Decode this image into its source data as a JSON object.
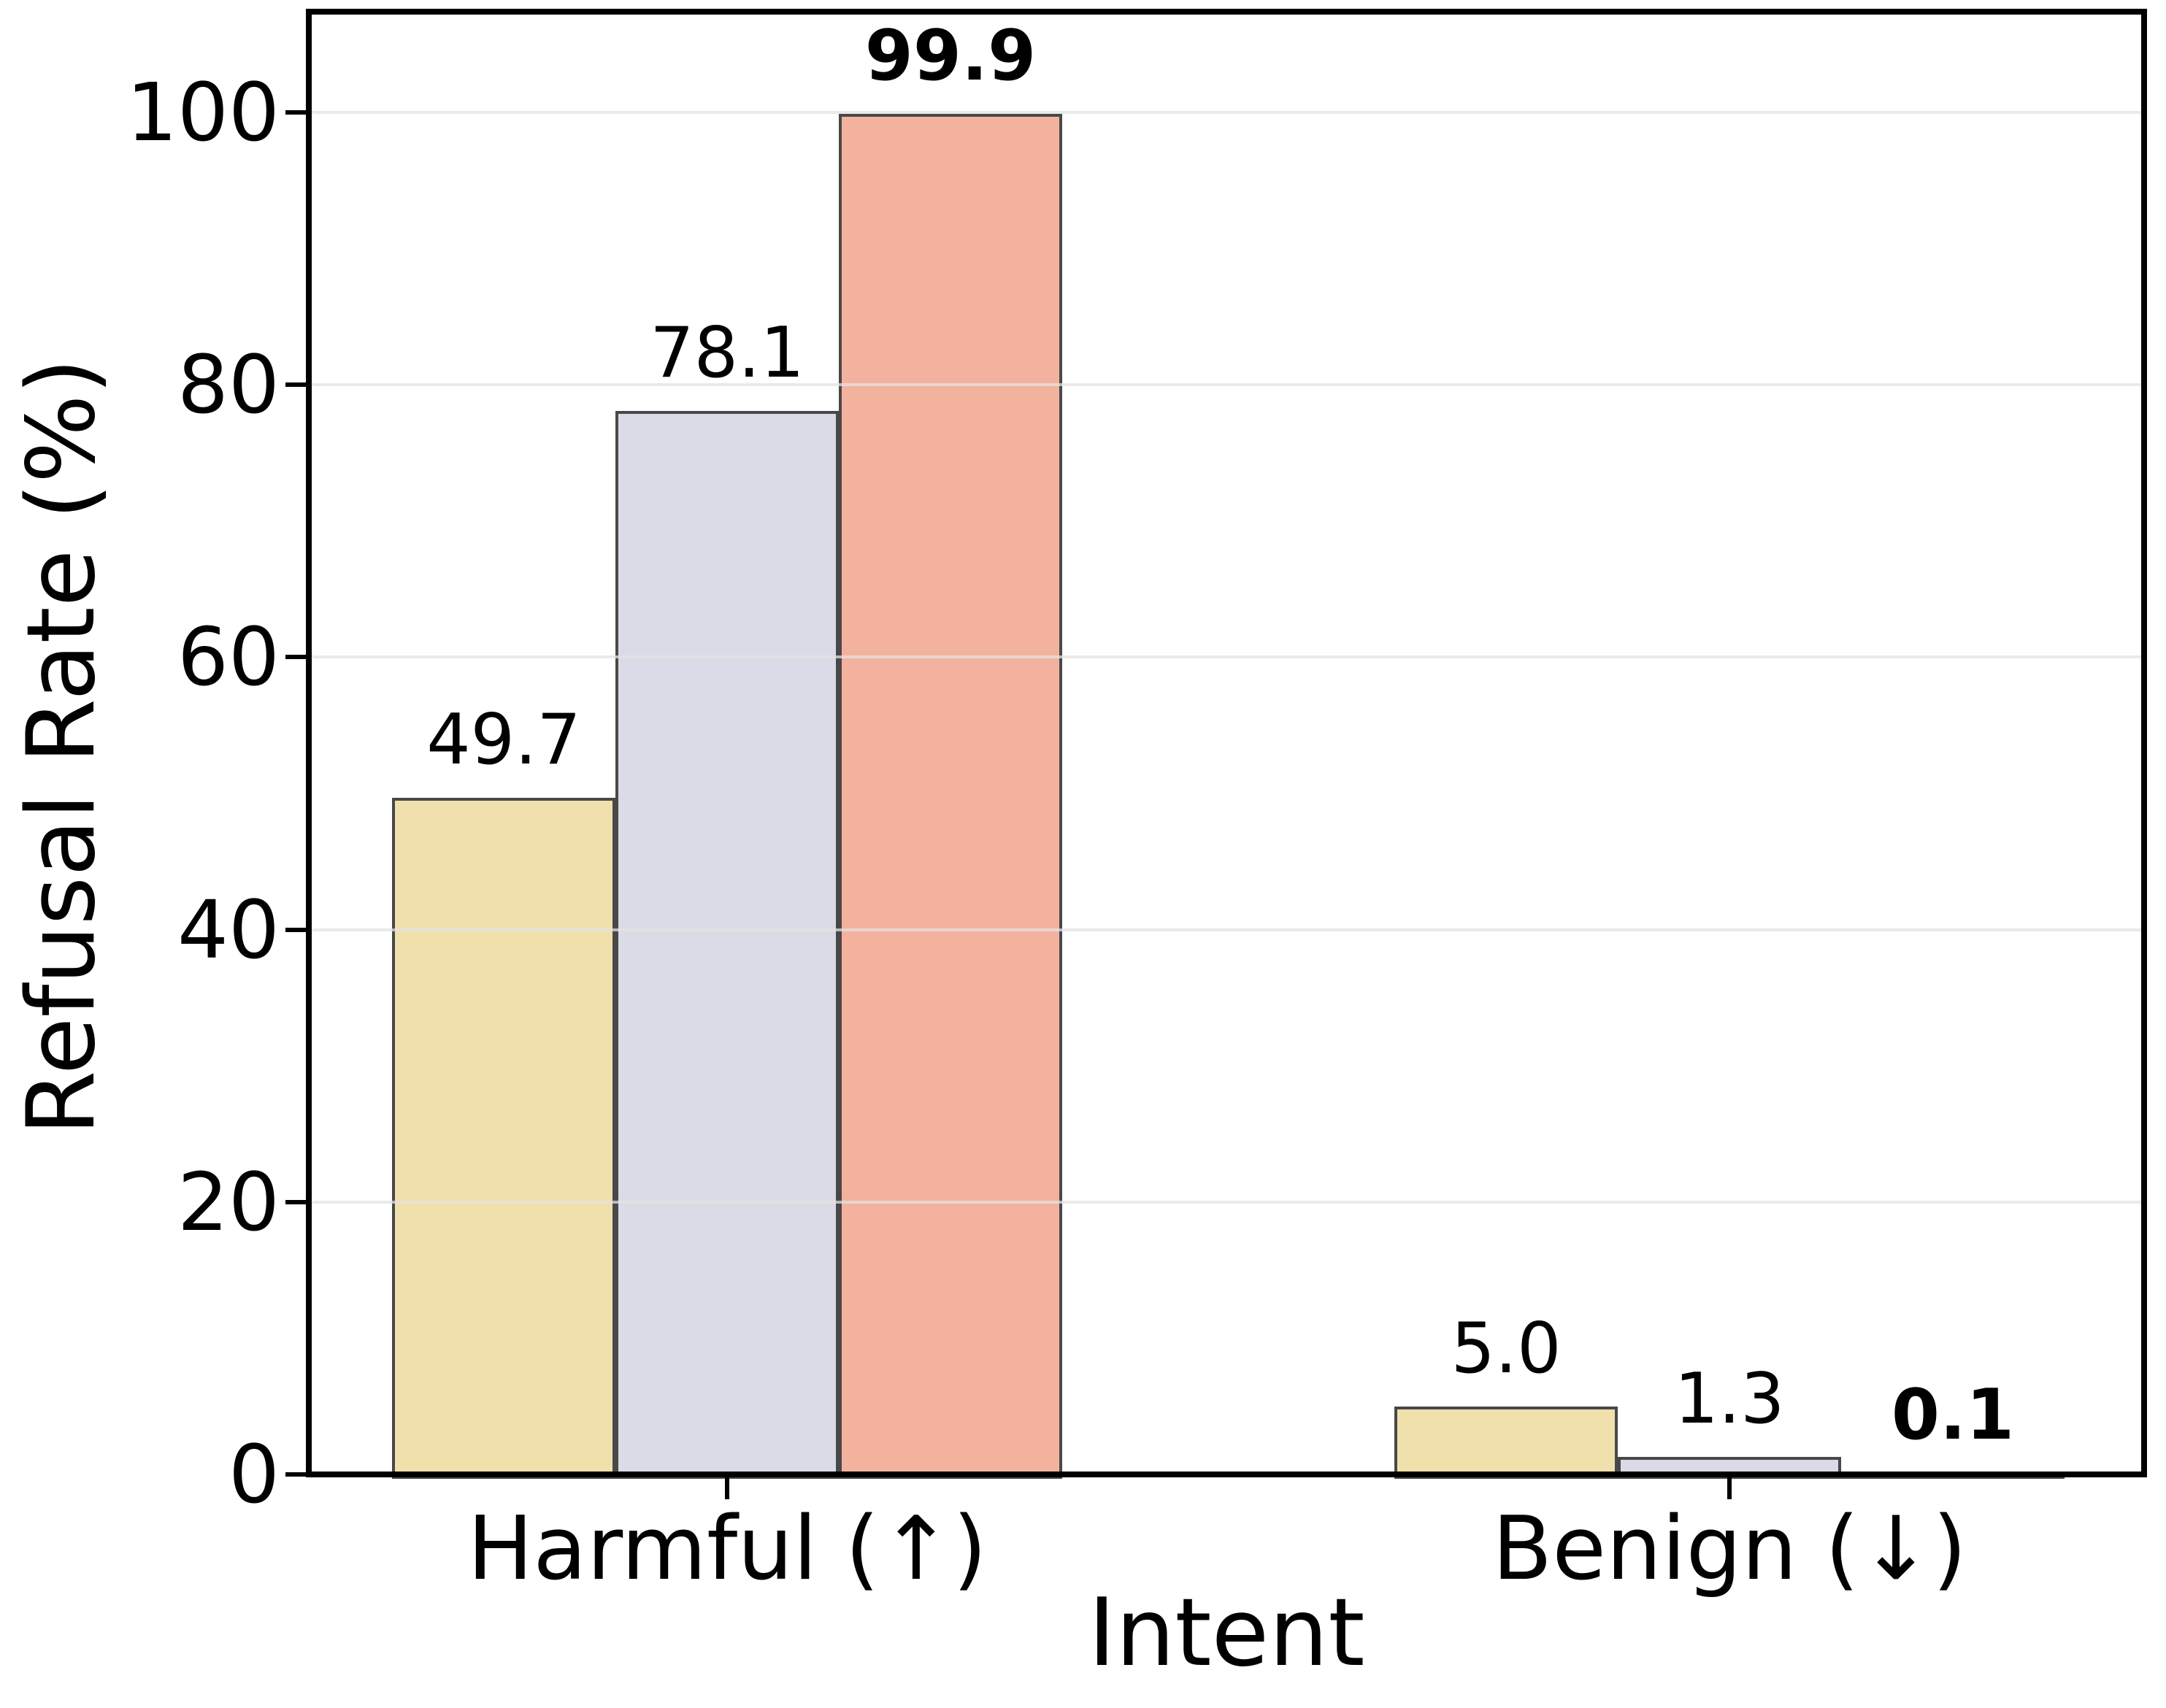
{
  "chart_data": {
    "type": "bar",
    "xlabel": "Intent",
    "ylabel": "Refusal Rate (%)",
    "categories": [
      "Harmful (↑)",
      "Benign (↓)"
    ],
    "series": [
      {
        "color": "#F0E0AC",
        "values": [
          49.7,
          5.0
        ],
        "value_labels": [
          "49.7",
          "5.0"
        ],
        "bold_value_labels": false
      },
      {
        "color": "#DBDBE7",
        "values": [
          78.1,
          1.3
        ],
        "value_labels": [
          "78.1",
          "1.3"
        ],
        "bold_value_labels": false
      },
      {
        "color": "#F3B29E",
        "values": [
          99.9,
          0.1
        ],
        "value_labels": [
          "99.9",
          "0.1"
        ],
        "bold_value_labels": true
      }
    ],
    "yticks": [
      {
        "value": 0,
        "label": "0"
      },
      {
        "value": 20,
        "label": "20"
      },
      {
        "value": 40,
        "label": "40"
      },
      {
        "value": 60,
        "label": "60"
      },
      {
        "value": 80,
        "label": "80"
      },
      {
        "value": 100,
        "label": "100"
      }
    ],
    "ylim": [
      0,
      107.4
    ],
    "grid": "horizontal",
    "legend": "none",
    "colors": {
      "bar_edge": "#484848",
      "grid_line": "#E3E3E3",
      "axis": "#000000",
      "text": "#000000",
      "background": "#FFFFFF"
    }
  }
}
